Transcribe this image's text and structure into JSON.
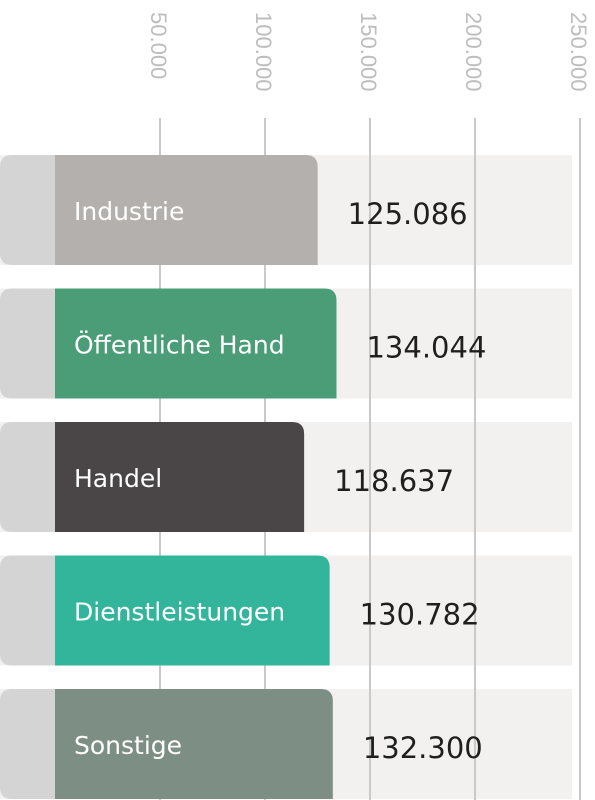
{
  "chart_data": {
    "type": "bar",
    "orientation": "horizontal",
    "categories": [
      "Industrie",
      "Öffentliche Hand",
      "Handel",
      "Dienstleistungen",
      "Sonstige"
    ],
    "values": [
      125086,
      134044,
      118637,
      130782,
      132300
    ],
    "value_labels": [
      "125.086",
      "134.044",
      "118.637",
      "130.782",
      "132.300"
    ],
    "ticks": [
      50000,
      100000,
      150000,
      200000,
      250000
    ],
    "tick_labels": [
      "50.000",
      "100.000",
      "150.000",
      "200.000",
      "250.000"
    ],
    "xlim": [
      0,
      250000
    ],
    "colors": [
      "#b4b0ad",
      "#4a9d76",
      "#4a4546",
      "#33b59b",
      "#7d8f84"
    ],
    "grid": true,
    "axis_position": "top",
    "tick_label_orientation": "vertical"
  }
}
